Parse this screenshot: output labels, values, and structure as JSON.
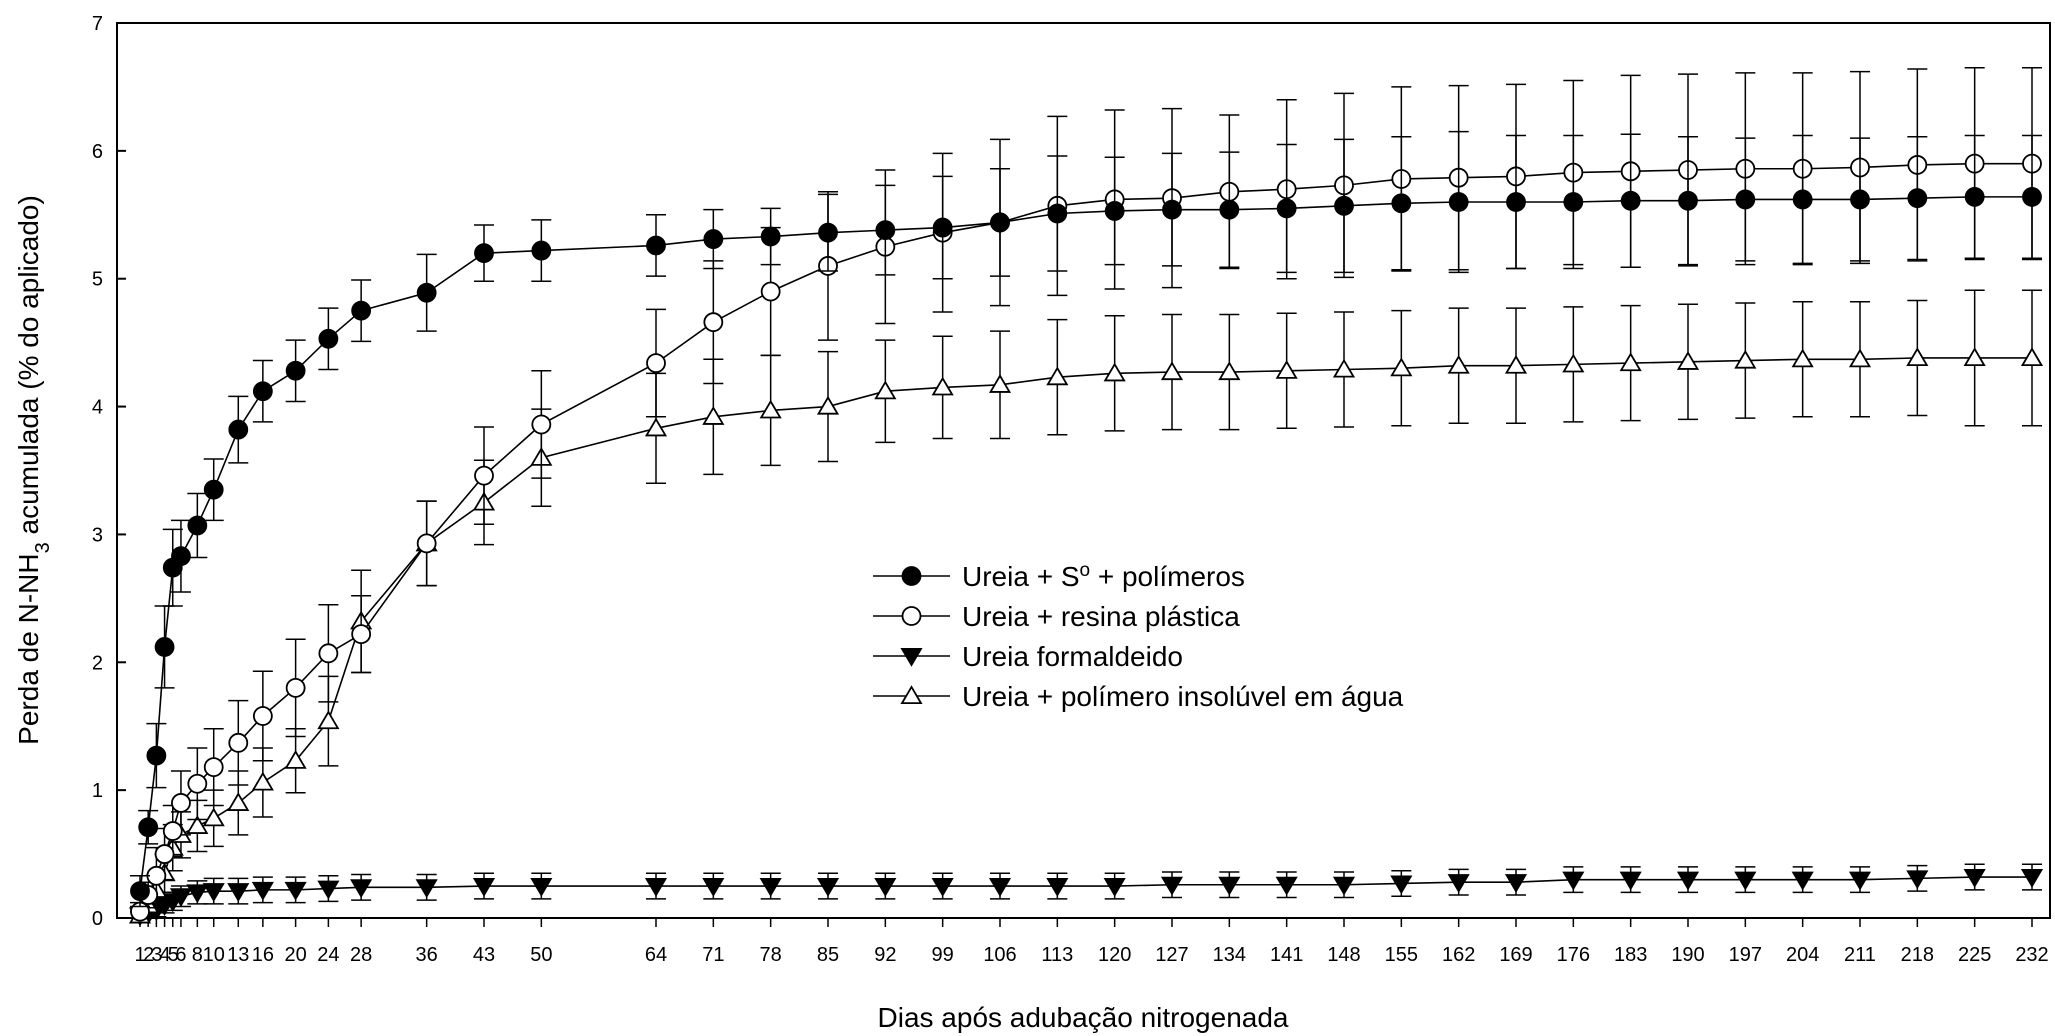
{
  "chart_data": {
    "type": "line",
    "xlabel": "Dias após adubação nitrogenada",
    "ylabel_parts": [
      "Perda de N-NH",
      "3",
      " acumulada (% do aplicado)"
    ],
    "ylim": [
      0,
      7
    ],
    "y_ticks": [
      "0",
      "1",
      "2",
      "3",
      "4",
      "5",
      "6",
      "7"
    ],
    "x": [
      1,
      2,
      3,
      4,
      5,
      6,
      8,
      10,
      13,
      16,
      20,
      24,
      28,
      36,
      43,
      50,
      64,
      71,
      78,
      85,
      92,
      99,
      106,
      113,
      120,
      127,
      134,
      141,
      148,
      155,
      162,
      169,
      176,
      183,
      190,
      197,
      204,
      211,
      218,
      225,
      232
    ],
    "x_tick_labels": [
      "1",
      "2",
      "3",
      "4",
      "5",
      "6",
      "8",
      "10",
      "13",
      "16",
      "20",
      "24",
      "28",
      "36",
      "43",
      "50",
      "64",
      "71",
      "78",
      "85",
      "92",
      "99",
      "106",
      "113",
      "120",
      "127",
      "134",
      "141",
      "148",
      "155",
      "162",
      "169",
      "176",
      "183",
      "190",
      "197",
      "204",
      "211",
      "218",
      "225",
      "232"
    ],
    "grid": false,
    "legend_position": "center",
    "series": [
      {
        "name": "Ureia + S",
        "name_sup": "o",
        "name_rest": " + polímeros",
        "marker": "circle-filled",
        "values": [
          0.21,
          0.71,
          1.27,
          2.12,
          2.74,
          2.83,
          3.07,
          3.35,
          3.82,
          4.12,
          4.28,
          4.53,
          4.75,
          4.89,
          5.2,
          5.22,
          5.26,
          5.31,
          5.33,
          5.36,
          5.38,
          5.4,
          5.44,
          5.51,
          5.53,
          5.54,
          5.54,
          5.55,
          5.57,
          5.59,
          5.6,
          5.6,
          5.6,
          5.61,
          5.61,
          5.62,
          5.62,
          5.62,
          5.63,
          5.64,
          5.64
        ],
        "error": [
          0.12,
          0.13,
          0.25,
          0.32,
          0.3,
          0.28,
          0.25,
          0.24,
          0.26,
          0.24,
          0.24,
          0.24,
          0.24,
          0.3,
          0.22,
          0.24,
          0.24,
          0.23,
          0.22,
          0.3,
          0.35,
          0.4,
          0.42,
          0.45,
          0.42,
          0.44,
          0.45,
          0.5,
          0.52,
          0.52,
          0.55,
          0.52,
          0.52,
          0.52,
          0.5,
          0.48,
          0.5,
          0.48,
          0.48,
          0.48,
          0.48
        ]
      },
      {
        "name": "Ureia + resina plástica",
        "marker": "circle-open",
        "values": [
          0.05,
          0.18,
          0.33,
          0.5,
          0.68,
          0.9,
          1.05,
          1.18,
          1.37,
          1.58,
          1.8,
          2.07,
          2.22,
          2.93,
          3.46,
          3.86,
          4.34,
          4.66,
          4.9,
          5.1,
          5.25,
          5.36,
          5.44,
          5.57,
          5.62,
          5.63,
          5.68,
          5.7,
          5.73,
          5.78,
          5.79,
          5.8,
          5.83,
          5.84,
          5.85,
          5.86,
          5.86,
          5.87,
          5.89,
          5.9,
          5.9
        ],
        "error": [
          0.07,
          0.1,
          0.22,
          0.2,
          0.2,
          0.25,
          0.28,
          0.3,
          0.33,
          0.35,
          0.38,
          0.38,
          0.3,
          0.33,
          0.38,
          0.42,
          0.42,
          0.48,
          0.5,
          0.58,
          0.6,
          0.62,
          0.65,
          0.7,
          0.7,
          0.7,
          0.6,
          0.7,
          0.72,
          0.72,
          0.72,
          0.72,
          0.72,
          0.75,
          0.75,
          0.75,
          0.75,
          0.75,
          0.75,
          0.75,
          0.75
        ]
      },
      {
        "name": "Ureia formaldeido",
        "marker": "triangle-down-filled",
        "values": [
          0.02,
          0.03,
          0.06,
          0.1,
          0.13,
          0.17,
          0.2,
          0.21,
          0.21,
          0.22,
          0.22,
          0.23,
          0.24,
          0.24,
          0.25,
          0.25,
          0.25,
          0.25,
          0.25,
          0.25,
          0.25,
          0.25,
          0.25,
          0.25,
          0.25,
          0.26,
          0.26,
          0.26,
          0.26,
          0.27,
          0.28,
          0.28,
          0.3,
          0.3,
          0.3,
          0.3,
          0.3,
          0.3,
          0.31,
          0.32,
          0.32
        ],
        "error": [
          0.03,
          0.04,
          0.05,
          0.06,
          0.07,
          0.08,
          0.09,
          0.1,
          0.1,
          0.1,
          0.1,
          0.1,
          0.1,
          0.1,
          0.1,
          0.1,
          0.1,
          0.1,
          0.1,
          0.1,
          0.1,
          0.1,
          0.1,
          0.1,
          0.1,
          0.1,
          0.1,
          0.1,
          0.1,
          0.1,
          0.1,
          0.1,
          0.1,
          0.1,
          0.1,
          0.1,
          0.1,
          0.1,
          0.1,
          0.1,
          0.1
        ]
      },
      {
        "name": "Ureia + polímero insolúvel em água",
        "marker": "triangle-up-open",
        "values": [
          0.02,
          0.1,
          0.22,
          0.35,
          0.55,
          0.65,
          0.72,
          0.78,
          0.9,
          1.06,
          1.23,
          1.54,
          2.32,
          2.93,
          3.25,
          3.6,
          3.83,
          3.92,
          3.97,
          4.0,
          4.12,
          4.15,
          4.17,
          4.23,
          4.26,
          4.27,
          4.27,
          4.28,
          4.29,
          4.3,
          4.32,
          4.32,
          4.33,
          4.34,
          4.35,
          4.36,
          4.37,
          4.37,
          4.38,
          4.38,
          4.38
        ],
        "error": [
          0.05,
          0.1,
          0.12,
          0.15,
          0.18,
          0.18,
          0.2,
          0.22,
          0.25,
          0.27,
          0.25,
          0.35,
          0.4,
          0.33,
          0.33,
          0.38,
          0.43,
          0.45,
          0.43,
          0.43,
          0.4,
          0.4,
          0.42,
          0.45,
          0.45,
          0.45,
          0.45,
          0.45,
          0.45,
          0.45,
          0.45,
          0.45,
          0.45,
          0.45,
          0.45,
          0.45,
          0.45,
          0.45,
          0.45,
          0.53,
          0.53
        ]
      }
    ]
  }
}
